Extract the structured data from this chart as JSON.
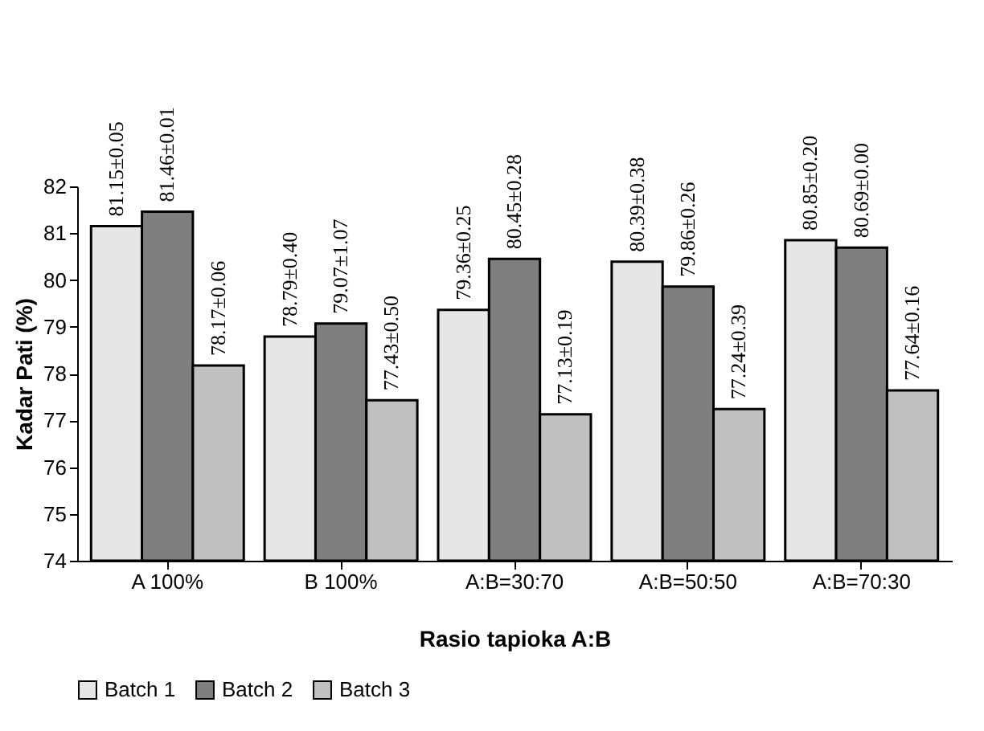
{
  "chart_data": {
    "type": "bar",
    "xlabel": "Rasio tapioka A:B",
    "ylabel": "Kadar Pati (%)",
    "categories": [
      "A 100%",
      "B 100%",
      "A:B=30:70",
      "A:B=50:50",
      "A:B=70:30"
    ],
    "series": [
      {
        "name": "Batch 1",
        "color": "#e6e6e6",
        "values": [
          81.15,
          78.79,
          79.36,
          80.39,
          80.85
        ],
        "value_labels": [
          "81.15±0.05",
          "78.79±0.40",
          "79.36±0.25",
          "80.39±0.38",
          "80.85±0.20"
        ]
      },
      {
        "name": "Batch 2",
        "color": "#7f7f7f",
        "values": [
          81.46,
          79.07,
          80.45,
          79.86,
          80.69
        ],
        "value_labels": [
          "81.46±0.01",
          "79.07±1.07",
          "80.45±0.28",
          "79.86±0.26",
          "80.69±0.00"
        ]
      },
      {
        "name": "Batch 3",
        "color": "#c0c0c0",
        "values": [
          78.17,
          77.43,
          77.13,
          77.24,
          77.64
        ],
        "value_labels": [
          "78.17±0.06",
          "77.43±0.50",
          "77.13±0.19",
          "77.24±0.39",
          "77.64±0.16"
        ]
      }
    ],
    "ylim": [
      74,
      82
    ],
    "yticks": [
      74,
      75,
      76,
      77,
      78,
      79,
      80,
      81,
      82
    ],
    "grid": false,
    "legend": "bottom"
  }
}
